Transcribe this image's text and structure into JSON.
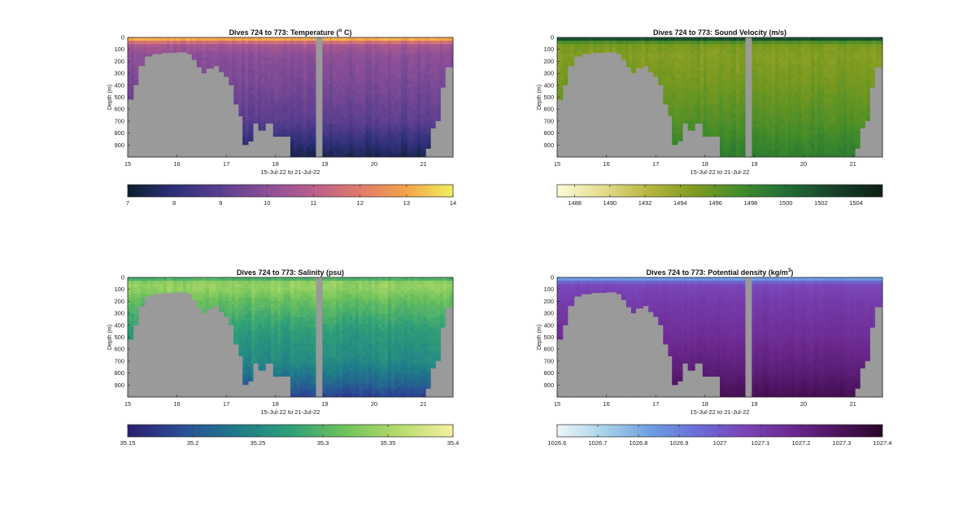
{
  "chart_data": [
    {
      "type": "heatmap",
      "title": "Dives 724 to 773: Temperature (",
      "title_sup": "o",
      "title_end": " C)",
      "ylabel": "Depth (m)",
      "xlabel": "15-Jul-22 to 21-Jul-22",
      "x_ticks": [
        15,
        16,
        17,
        18,
        19,
        20,
        21
      ],
      "y_ticks": [
        0,
        100,
        200,
        300,
        400,
        500,
        600,
        700,
        800,
        900
      ],
      "xlim": [
        15,
        21.6
      ],
      "ylim": [
        0,
        1000
      ],
      "gap_x": [
        18.82,
        18.95
      ],
      "colorbar": {
        "range": [
          7,
          14
        ],
        "ticks": [
          "7",
          "8",
          "9",
          "10",
          "11",
          "12",
          "13",
          "14"
        ],
        "colors": [
          "#0b1f2d",
          "#2e2f7a",
          "#5a3e8f",
          "#8c4f97",
          "#b95f8b",
          "#e07a6b",
          "#f3a448",
          "#f0f060"
        ]
      },
      "profile": {
        "depth": [
          0,
          30,
          60,
          150,
          400,
          700,
          850,
          1000
        ],
        "value": [
          13.8,
          12.2,
          10.6,
          10.0,
          9.6,
          9.0,
          8.2,
          7.4
        ]
      },
      "noise": 0.25
    },
    {
      "type": "heatmap",
      "title": "Dives 724 to 773: Sound Velocity (m/s)",
      "title_sup": "",
      "title_end": "",
      "ylabel": "Depth (m)",
      "xlabel": "15-Jul-22 to 21-Jul-22",
      "x_ticks": [
        15,
        16,
        17,
        18,
        19,
        20,
        21
      ],
      "y_ticks": [
        0,
        100,
        200,
        300,
        400,
        500,
        600,
        700,
        800,
        900
      ],
      "xlim": [
        15,
        21.6
      ],
      "ylim": [
        0,
        1000
      ],
      "gap_x": [
        18.82,
        18.95
      ],
      "colorbar": {
        "range": [
          1487,
          1505.5
        ],
        "ticks": [
          "1488",
          "1490",
          "1492",
          "1494",
          "1496",
          "1498",
          "1500",
          "1502",
          "1504"
        ],
        "colors": [
          "#fdfbd8",
          "#e3dc8c",
          "#b5b43d",
          "#7c9a1f",
          "#3f8a2b",
          "#1f6b35",
          "#173e29",
          "#0d1f14"
        ]
      },
      "profile": {
        "depth": [
          0,
          20,
          50,
          150,
          400,
          700,
          1000
        ],
        "value": [
          1503.5,
          1501.0,
          1495.2,
          1494.6,
          1495.4,
          1496.8,
          1498.8
        ]
      },
      "noise": 0.6
    },
    {
      "type": "heatmap",
      "title": "Dives 724 to 773: Salinity (psu)",
      "title_sup": "",
      "title_end": "",
      "ylabel": "Depth (m)",
      "xlabel": "15-Jul-22 to 21-Jul-22",
      "x_ticks": [
        15,
        16,
        17,
        18,
        19,
        20,
        21
      ],
      "y_ticks": [
        0,
        100,
        200,
        300,
        400,
        500,
        600,
        700,
        800,
        900
      ],
      "xlim": [
        15,
        21.6
      ],
      "ylim": [
        0,
        1000
      ],
      "gap_x": [
        18.82,
        18.95
      ],
      "colorbar": {
        "range": [
          35.15,
          35.4
        ],
        "ticks": [
          "35.15",
          "35.2",
          "35.25",
          "35.3",
          "35.35",
          "35.4"
        ],
        "colors": [
          "#2a1e6e",
          "#2a4d96",
          "#1f7b8a",
          "#2f9f78",
          "#6ec25c",
          "#b6dc6a",
          "#f5f0a0"
        ]
      },
      "profile": {
        "depth": [
          0,
          20,
          80,
          200,
          450,
          700,
          900,
          1000
        ],
        "value": [
          35.22,
          35.33,
          35.34,
          35.31,
          35.27,
          35.25,
          35.21,
          35.18
        ]
      },
      "noise": 0.012
    },
    {
      "type": "heatmap",
      "title": "Dives 724 to 773: Potential density (kg/m",
      "title_sup": "3",
      "title_end": ")",
      "ylabel": "Depth (m)",
      "xlabel": "15-Jul-22 to 21-Jul-22",
      "x_ticks": [
        15,
        16,
        17,
        18,
        19,
        20,
        21
      ],
      "y_ticks": [
        0,
        100,
        200,
        300,
        400,
        500,
        600,
        700,
        800,
        900
      ],
      "xlim": [
        15,
        21.6
      ],
      "ylim": [
        0,
        1000
      ],
      "gap_x": [
        18.82,
        18.95
      ],
      "colorbar": {
        "range": [
          1026.6,
          1027.4
        ],
        "ticks": [
          "1026.6",
          "1026.7",
          "1026.8",
          "1026.9",
          "1027",
          "1027.1",
          "1027.2",
          "1027.3",
          "1027.4"
        ],
        "colors": [
          "#eef6f8",
          "#a9d3ea",
          "#6d9fe0",
          "#6a6ed8",
          "#7a45b8",
          "#6d2a92",
          "#4e1461",
          "#2a0626"
        ]
      },
      "profile": {
        "depth": [
          0,
          25,
          60,
          200,
          500,
          800,
          1000
        ],
        "value": [
          1026.75,
          1026.92,
          1027.05,
          1027.1,
          1027.16,
          1027.24,
          1027.32
        ]
      },
      "noise": 0.015
    }
  ],
  "colors": {
    "land": "#9a9a9a",
    "axis": "#262626"
  },
  "bathymetry": {
    "x": [
      15.0,
      15.12,
      15.22,
      15.35,
      15.5,
      15.7,
      16.0,
      16.2,
      16.3,
      16.4,
      16.5,
      16.6,
      16.75,
      16.85,
      16.95,
      17.05,
      17.15,
      17.25,
      17.33,
      17.45,
      17.55,
      17.65,
      17.8,
      17.95,
      18.3,
      18.82,
      18.95,
      20.9,
      21.05,
      21.15,
      21.25,
      21.35,
      21.45,
      21.6
    ],
    "depth": [
      520,
      400,
      240,
      160,
      140,
      130,
      125,
      140,
      190,
      250,
      300,
      260,
      240,
      290,
      330,
      400,
      560,
      660,
      900,
      870,
      720,
      780,
      720,
      830,
      1000,
      1000,
      1000,
      1000,
      930,
      760,
      700,
      420,
      250,
      200
    ]
  }
}
